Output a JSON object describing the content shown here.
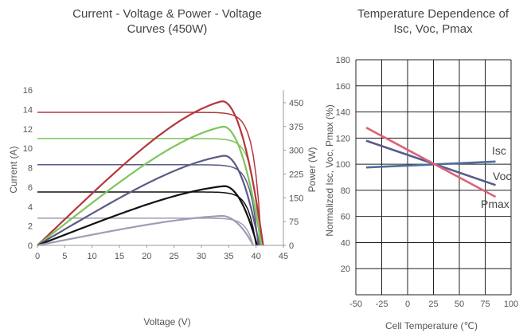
{
  "chart_data": [
    {
      "type": "line",
      "title_lines": [
        "Current - Voltage & Power - Voltage",
        "Curves (450W)"
      ],
      "xlabel": "Voltage (V)",
      "ylabel": "Current (A)",
      "y2label": "Power (W)",
      "xlim": [
        0,
        45
      ],
      "ylim": [
        0,
        16
      ],
      "y2lim": [
        0,
        490
      ],
      "xticks": [
        "0",
        "5",
        "10",
        "15",
        "20",
        "25",
        "30",
        "35",
        "40",
        "45"
      ],
      "yticks": [
        "0",
        "2",
        "4",
        "6",
        "8",
        "10",
        "12",
        "14",
        "16"
      ],
      "y2ticks": [
        "0",
        "75",
        "150",
        "225",
        "300",
        "375",
        "450"
      ],
      "grid": false,
      "iv_curves": [
        {
          "isc": 13.7,
          "voc": 41.0,
          "color": "#b5363e"
        },
        {
          "isc": 11.0,
          "voc": 40.7,
          "color": "#7ec45c"
        },
        {
          "isc": 8.3,
          "voc": 40.4,
          "color": "#5a5a86"
        },
        {
          "isc": 5.5,
          "voc": 40.0,
          "color": "#111111"
        },
        {
          "isc": 2.8,
          "voc": 39.5,
          "color": "#9d9db5"
        }
      ],
      "pv_curves": [
        {
          "vmp": 33.8,
          "pmax": 455,
          "voc": 41.3,
          "color": "#b5363e"
        },
        {
          "vmp": 34.0,
          "pmax": 375,
          "voc": 41.0,
          "color": "#7ec45c"
        },
        {
          "vmp": 34.2,
          "pmax": 283,
          "voc": 40.6,
          "color": "#5a5a86"
        },
        {
          "vmp": 34.2,
          "pmax": 187,
          "voc": 40.2,
          "color": "#111111"
        },
        {
          "vmp": 33.7,
          "pmax": 93,
          "voc": 39.5,
          "color": "#9d9db5"
        }
      ]
    },
    {
      "type": "line",
      "title_lines": [
        "Temperature Dependence of",
        "Isc, Voc, Pmax"
      ],
      "xlabel": "Cell Temperature (℃)",
      "ylabel": "Normalized Isc, Voc, Pmax (%)",
      "xlim": [
        -50,
        100
      ],
      "ylim": [
        0,
        180
      ],
      "xticks": [
        "-50",
        "-25",
        "0",
        "25",
        "50",
        "75",
        "100"
      ],
      "yticks": [
        "20",
        "40",
        "60",
        "80",
        "100",
        "120",
        "140",
        "160",
        "180"
      ],
      "grid": true,
      "series": [
        {
          "name": "Isc",
          "x": [
            -40,
            85
          ],
          "y": [
            97.5,
            102
          ],
          "color": "#4f6f9a"
        },
        {
          "name": "Voc",
          "x": [
            -40,
            85
          ],
          "y": [
            118,
            84
          ],
          "color": "#595a8c"
        },
        {
          "name": "Pmax",
          "x": [
            -40,
            85
          ],
          "y": [
            128,
            75
          ],
          "color": "#d96478"
        }
      ]
    }
  ]
}
